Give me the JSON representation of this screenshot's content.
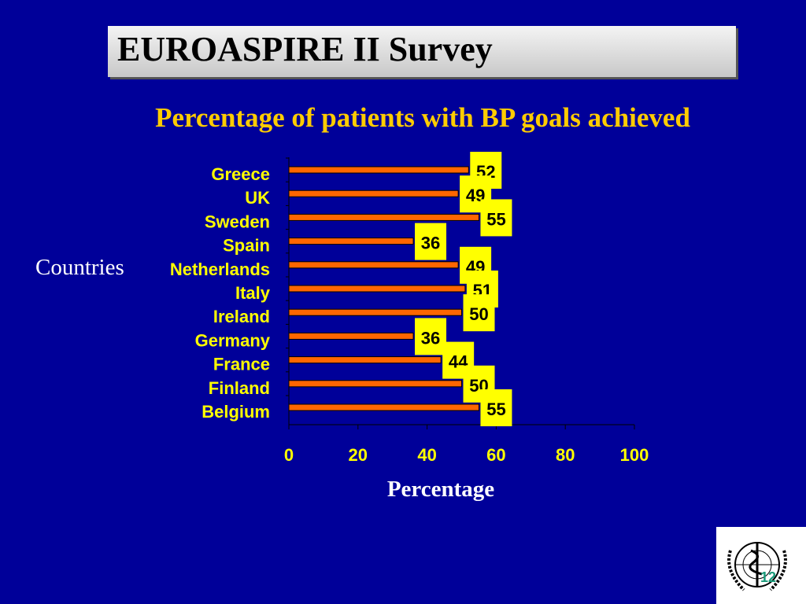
{
  "title": "EUROASPIRE II Survey",
  "chart_data": {
    "type": "bar",
    "orientation": "horizontal",
    "title": "Percentage of patients with BP goals achieved",
    "xlabel": "Percentage",
    "ylabel": "Countries",
    "categories": [
      "Greece",
      "UK",
      "Sweden",
      "Spain",
      "Netherlands",
      "Italy",
      "Ireland",
      "Germany",
      "France",
      "Finland",
      "Belgium"
    ],
    "values": [
      52,
      49,
      55,
      36,
      49,
      51,
      50,
      36,
      44,
      50,
      55
    ],
    "xlim": [
      0,
      100
    ],
    "xticks": [
      "0",
      "20",
      "40",
      "60",
      "80",
      "100"
    ],
    "grid": false,
    "bar_color": "#FF6600",
    "label_bg": "#FFFF00"
  },
  "slide_number": "12",
  "colors": {
    "background": "#000099",
    "subtitle": "#FFCC00"
  }
}
